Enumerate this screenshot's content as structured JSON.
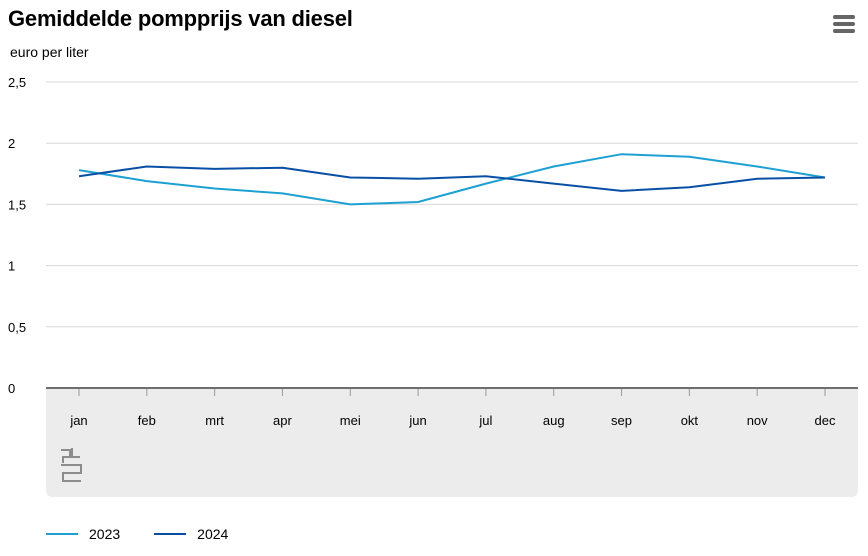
{
  "chart_data": {
    "type": "line",
    "title": "Gemiddelde pompprijs van diesel",
    "ylabel": "euro per liter",
    "xlabel": "",
    "categories": [
      "jan",
      "feb",
      "mrt",
      "apr",
      "mei",
      "jun",
      "jul",
      "aug",
      "sep",
      "okt",
      "nov",
      "dec"
    ],
    "ylim": [
      0,
      2.5
    ],
    "yticks": [
      0,
      0.5,
      1,
      1.5,
      2,
      2.5
    ],
    "ytick_labels": [
      "0",
      "0,5",
      "1",
      "1,5",
      "2",
      "2,5"
    ],
    "series": [
      {
        "name": "2023",
        "color": "#1ea0d2",
        "values": [
          1.78,
          1.69,
          1.63,
          1.59,
          1.5,
          1.52,
          1.67,
          1.81,
          1.91,
          1.89,
          1.81,
          1.72
        ]
      },
      {
        "name": "2024",
        "color": "#0a4fa6",
        "values": [
          1.73,
          1.81,
          1.79,
          1.8,
          1.72,
          1.71,
          1.73,
          1.67,
          1.61,
          1.64,
          1.71,
          1.72
        ]
      }
    ],
    "grid": true,
    "legend_position": "bottom-left"
  },
  "colors": {
    "panel": "#ececec",
    "grid": "#d8d8d8",
    "axis": "#6e6e6e"
  },
  "icons": {
    "menu": "hamburger-menu-icon",
    "logo": "cbs-logo-icon"
  }
}
